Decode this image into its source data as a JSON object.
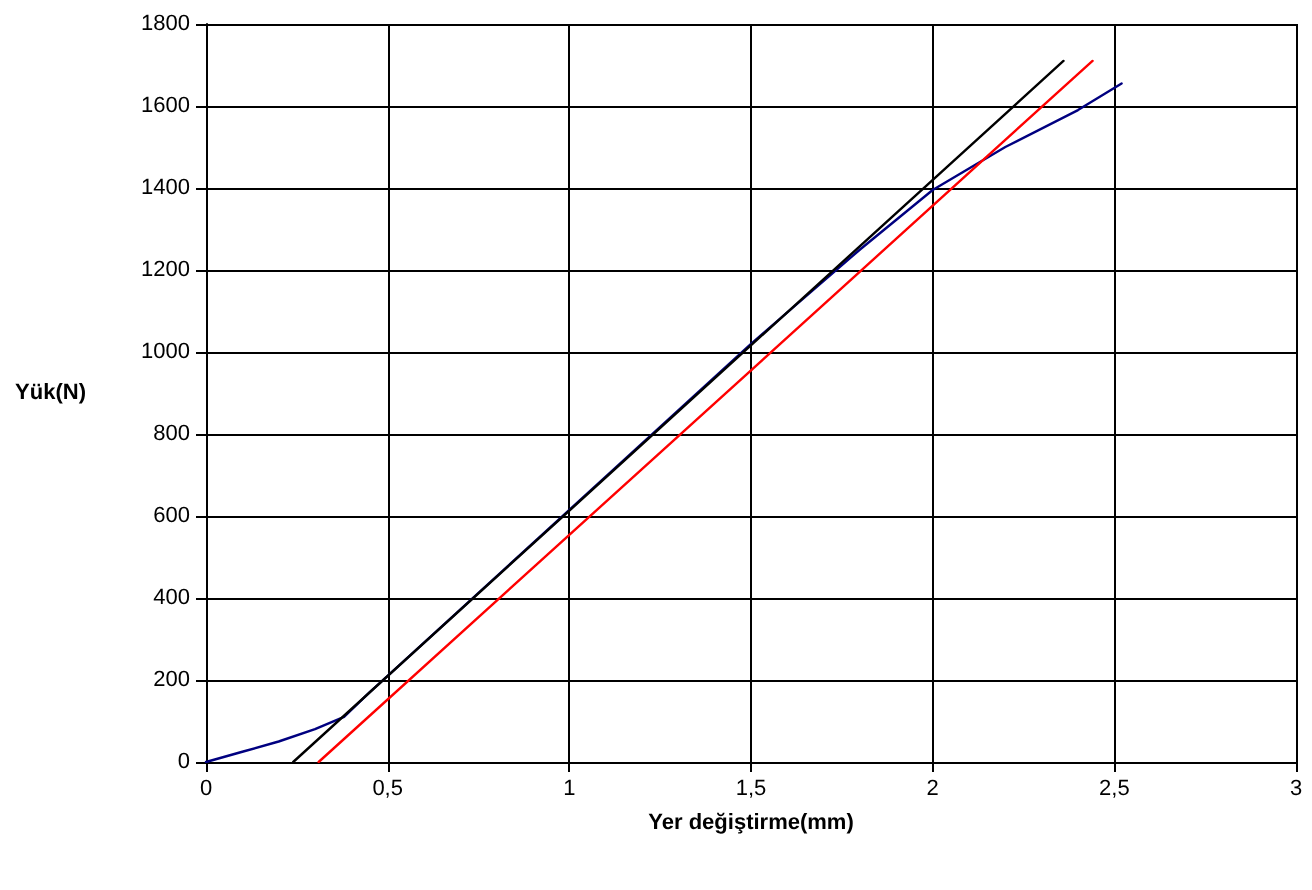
{
  "chart_data": {
    "type": "line",
    "xlabel": "Yer değiştirme(mm)",
    "ylabel": "Yük(N)",
    "xlim": [
      0,
      3
    ],
    "xticks": [
      0,
      {
        "value": 0.5,
        "label": "0,5"
      },
      1,
      {
        "value": 1.5,
        "label": "1,5"
      },
      2,
      {
        "value": 2.5,
        "label": "2,5"
      },
      3
    ],
    "ylim": [
      0,
      1800
    ],
    "yticks": [
      0,
      200,
      400,
      600,
      800,
      1000,
      1200,
      1400,
      1600,
      1800
    ],
    "grid": true,
    "marker": "none",
    "line_style": "solid",
    "series": [
      {
        "color": "#000080",
        "x": [
          0,
          0.1,
          0.2,
          0.3,
          0.38,
          0.45,
          0.5,
          1,
          1.5,
          1.8,
          2,
          2.2,
          2.4,
          2.52
        ],
        "values": [
          0,
          25,
          50,
          80,
          110,
          170,
          210,
          615,
          1020,
          1250,
          1395,
          1500,
          1590,
          1655
        ]
      },
      {
        "color": "#000000",
        "x": [
          0.24,
          2.36
        ],
        "values": [
          0,
          1710
        ]
      },
      {
        "color": "#ff0000",
        "x": [
          0.31,
          2.44
        ],
        "values": [
          0,
          1710
        ]
      }
    ]
  }
}
